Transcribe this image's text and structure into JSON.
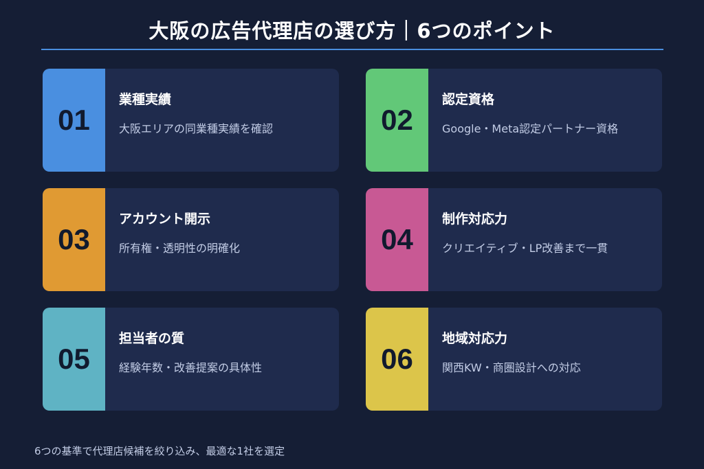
{
  "title": "大阪の広告代理店の選び方｜6つのポイント",
  "points": [
    {
      "number": "01",
      "title": "業種実績",
      "desc": "大阪エリアの同業種実績を確認",
      "color": "#4a8fe0"
    },
    {
      "number": "02",
      "title": "認定資格",
      "desc": "Google・Meta認定パートナー資格",
      "color": "#62c878"
    },
    {
      "number": "03",
      "title": "アカウント開示",
      "desc": "所有権・透明性の明確化",
      "color": "#e09a33"
    },
    {
      "number": "04",
      "title": "制作対応力",
      "desc": "クリエイティブ・LP改善まで一貫",
      "color": "#c85994"
    },
    {
      "number": "05",
      "title": "担当者の質",
      "desc": "経験年数・改善提案の具体性",
      "color": "#5fb3c4"
    },
    {
      "number": "06",
      "title": "地域対応力",
      "desc": "関西KW・商圏設計への対応",
      "color": "#dcc54a"
    }
  ],
  "footer": "6つの基準で代理店候補を絞り込み、最適な1社を選定"
}
